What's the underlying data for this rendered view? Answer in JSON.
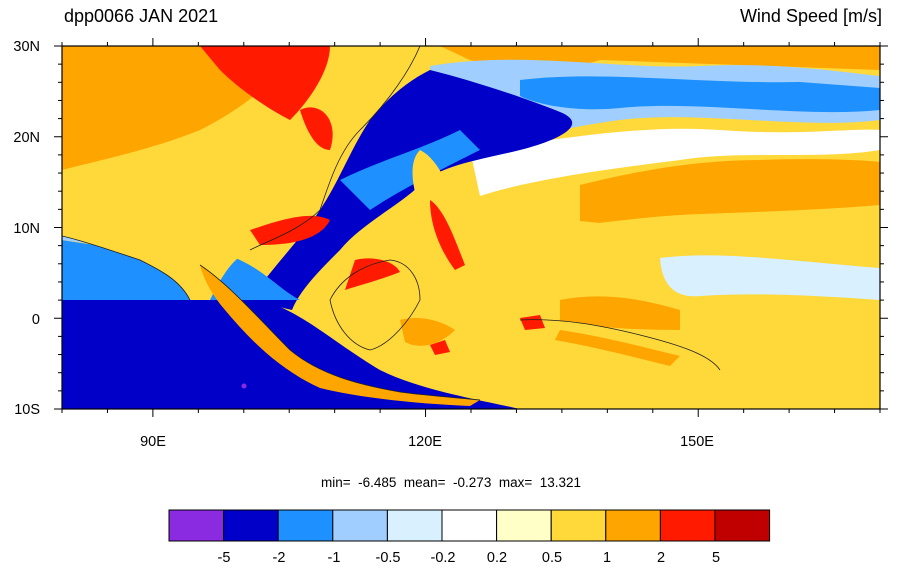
{
  "header": {
    "title": "dpp0066 JAN 2021",
    "variable": "Wind Speed [m/s]"
  },
  "map": {
    "lat_labels": [
      "30N",
      "20N",
      "10N",
      "0",
      "10S"
    ],
    "lon_labels": [
      "90E",
      "120E",
      "150E"
    ],
    "lat_range": [
      -10,
      30
    ],
    "lon_range": [
      80,
      170
    ]
  },
  "stats": {
    "text": "min=  -6.485  mean=  -0.273  max=  13.321"
  },
  "colorbar": {
    "colors": [
      "#8a2be2",
      "#0000c8",
      "#1e90ff",
      "#a0cfff",
      "#d8f0ff",
      "#ffffff",
      "#ffffc8",
      "#ffd83a",
      "#ffa500",
      "#ff1a00",
      "#c00000"
    ],
    "labels": [
      "-5",
      "-2",
      "-1",
      "-0.5",
      "-0.2",
      "0.2",
      "0.5",
      "1",
      "2",
      "5"
    ]
  }
}
